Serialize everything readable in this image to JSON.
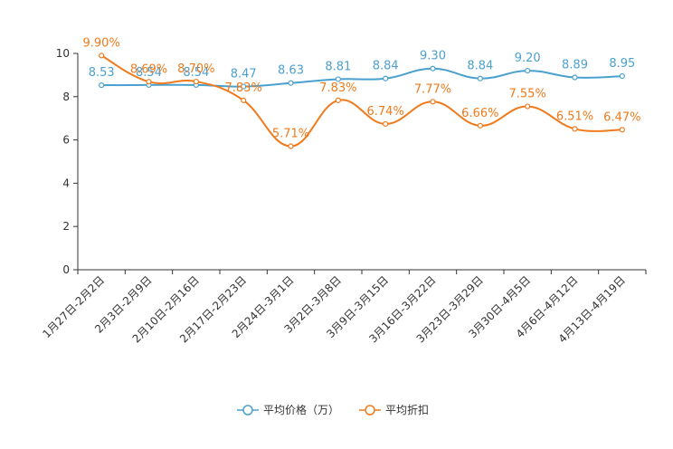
{
  "chart_data": {
    "type": "line",
    "title": "",
    "xlabel": "",
    "ylabel": "",
    "ylim": [
      0,
      10
    ],
    "yticks": [
      0,
      2,
      4,
      6,
      8,
      10
    ],
    "grid": false,
    "legend_position": "bottom",
    "categories": [
      "1月27日-2月2日",
      "2月3日-2月9日",
      "2月10日-2月16日",
      "2月17日-2月23日",
      "2月24日-3月1日",
      "3月2日-3月8日",
      "3月9日-3月15日",
      "3月16日-3月22日",
      "3月23日-3月29日",
      "3月30日-4月5日",
      "4月6日-4月12日",
      "4月13日-4月19日"
    ],
    "series": [
      {
        "name": "平均价格（万）",
        "color": "#4ba0cf",
        "values": [
          8.53,
          8.54,
          8.54,
          8.47,
          8.63,
          8.81,
          8.84,
          9.3,
          8.84,
          9.2,
          8.89,
          8.95
        ],
        "labels": [
          "8.53",
          "8.54",
          "8.54",
          "8.47",
          "8.63",
          "8.81",
          "8.84",
          "9.30",
          "8.84",
          "9.20",
          "8.89",
          "8.95"
        ]
      },
      {
        "name": "平均折扣",
        "color": "#f07a1b",
        "values": [
          9.9,
          8.69,
          8.7,
          7.83,
          5.71,
          7.83,
          6.74,
          7.77,
          6.66,
          7.55,
          6.51,
          6.47
        ],
        "labels": [
          "9.90%",
          "8.69%",
          "8.70%",
          "7.83%",
          "5.71%",
          "7.83%",
          "6.74%",
          "7.77%",
          "6.66%",
          "7.55%",
          "6.51%",
          "6.47%"
        ]
      }
    ]
  }
}
